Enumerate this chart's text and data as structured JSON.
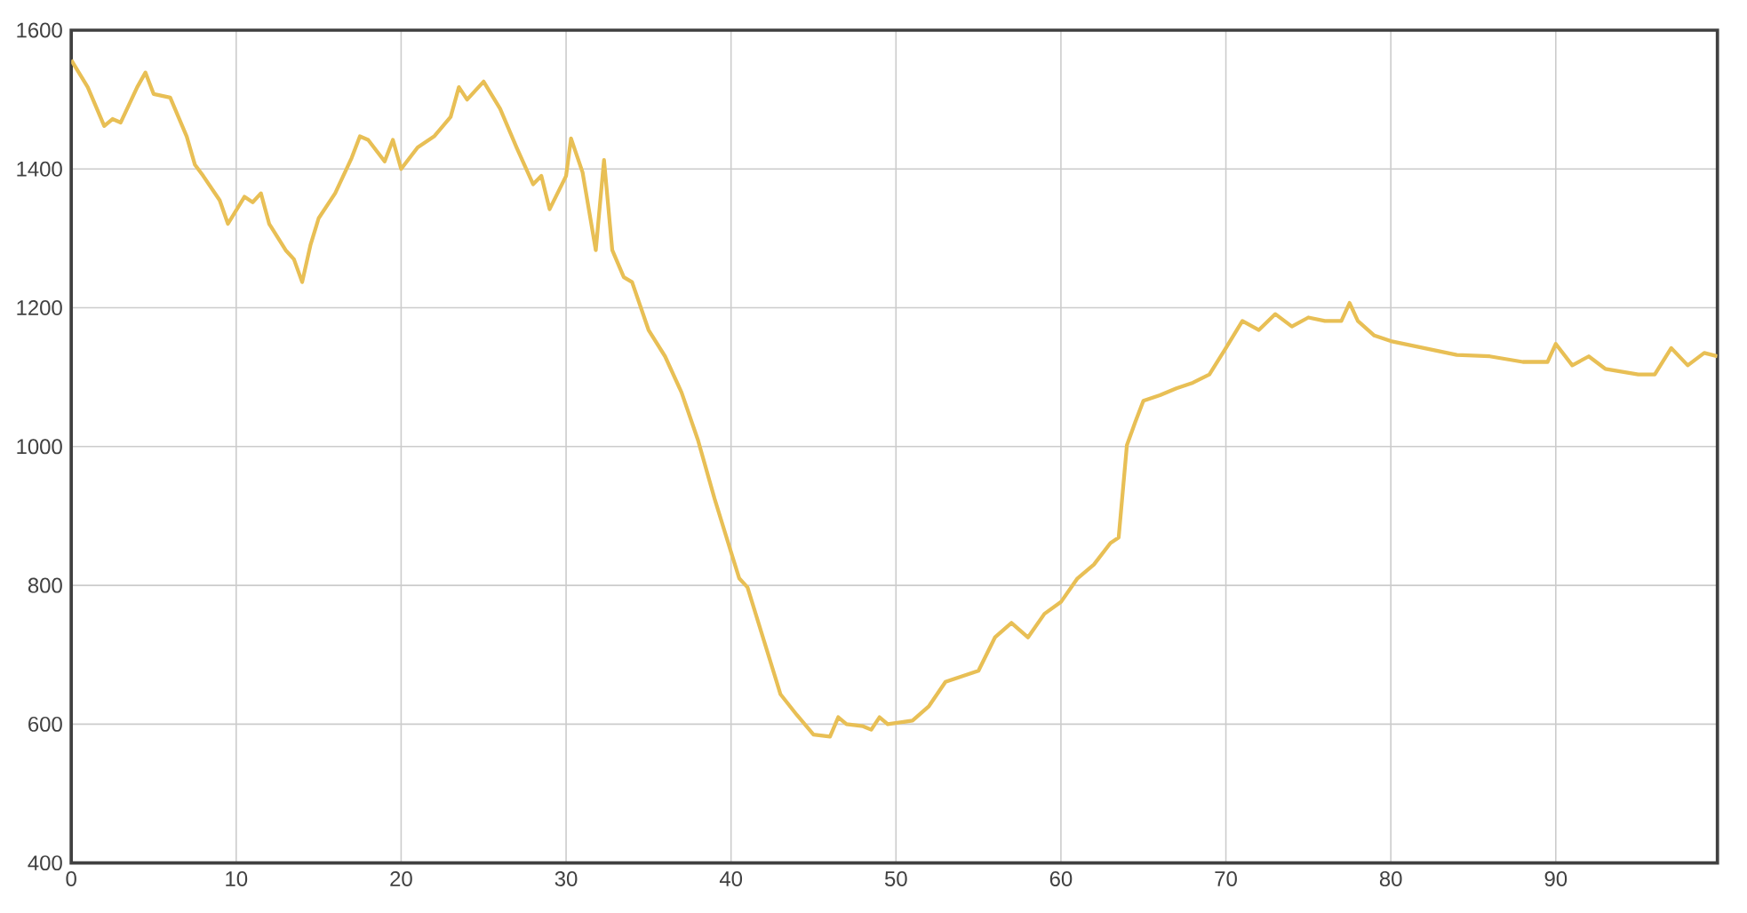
{
  "chart_data": {
    "type": "line",
    "xlim": [
      0,
      99.8
    ],
    "ylim": [
      400,
      1600
    ],
    "xticks": [
      0,
      10,
      20,
      30,
      40,
      50,
      60,
      70,
      80,
      90
    ],
    "yticks": [
      400,
      600,
      800,
      1000,
      1200,
      1400,
      1600
    ],
    "grid": true,
    "marker": "none",
    "line_style": "solid",
    "series": [
      {
        "color": "#e8bf55",
        "x": [
          0,
          1,
          2,
          2.5,
          3,
          4,
          4.5,
          5,
          6,
          7,
          7.5,
          8,
          9,
          9.5,
          10.5,
          11,
          11.5,
          12,
          13,
          13.5,
          14,
          14.5,
          15,
          16,
          17,
          17.5,
          18,
          19,
          19.5,
          20,
          21,
          22,
          23,
          23.5,
          24,
          25,
          26,
          27,
          28,
          28.5,
          29,
          30,
          30.3,
          31,
          31.8,
          32.3,
          32.8,
          33.5,
          34,
          35,
          36,
          37,
          38,
          39,
          40,
          40.5,
          41,
          42,
          43,
          44,
          45,
          46,
          46.5,
          47,
          48,
          48.5,
          49,
          49.5,
          51,
          52,
          53,
          54,
          55,
          56,
          57,
          58,
          59,
          60,
          61,
          62,
          63,
          63.5,
          64,
          64.5,
          65,
          66,
          67,
          68,
          69,
          70,
          71,
          72,
          73,
          74,
          75,
          76,
          77,
          77.5,
          78,
          79,
          80,
          82,
          84,
          86,
          88,
          89.5,
          90,
          91,
          92,
          93,
          95,
          96,
          97,
          98,
          99,
          99.8
        ],
        "values": [
          1557,
          1518,
          1462,
          1472,
          1467,
          1518,
          1539,
          1508,
          1503,
          1447,
          1406,
          1390,
          1355,
          1321,
          1360,
          1352,
          1365,
          1321,
          1283,
          1270,
          1237,
          1290,
          1329,
          1365,
          1416,
          1447,
          1442,
          1411,
          1442,
          1400,
          1431,
          1447,
          1475,
          1518,
          1500,
          1526,
          1487,
          1431,
          1378,
          1390,
          1342,
          1390,
          1444,
          1395,
          1283,
          1413,
          1283,
          1244,
          1237,
          1168,
          1130,
          1078,
          1009,
          925,
          848,
          810,
          797,
          720,
          643,
          613,
          585,
          582,
          610,
          600,
          597,
          592,
          610,
          600,
          605,
          626,
          661,
          669,
          677,
          725,
          746,
          725,
          759,
          776,
          810,
          830,
          861,
          869,
          1002,
          1035,
          1066,
          1074,
          1084,
          1092,
          1104,
          1142,
          1181,
          1168,
          1191,
          1173,
          1186,
          1181,
          1181,
          1207,
          1181,
          1160,
          1152,
          1142,
          1132,
          1130,
          1122,
          1122,
          1148,
          1117,
          1130,
          1112,
          1104,
          1104,
          1142,
          1117,
          1135,
          1130
        ]
      }
    ]
  }
}
